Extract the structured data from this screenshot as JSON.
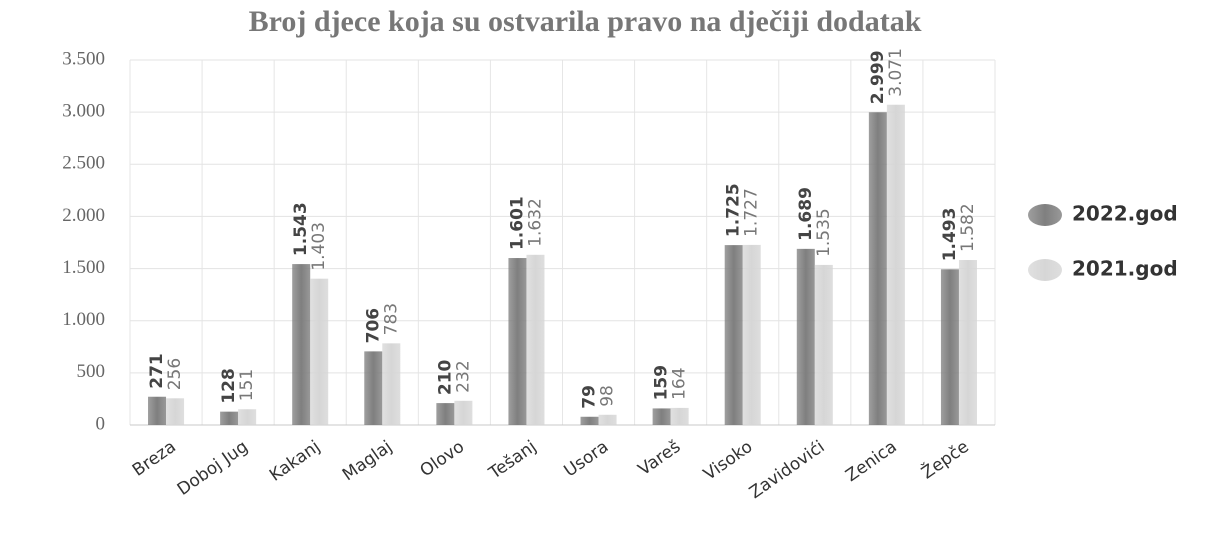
{
  "chart_data": {
    "type": "bar",
    "title": "Broj djece koja su ostvarila pravo na dječiji dodatak",
    "categories": [
      "Breza",
      "Doboj Jug",
      "Kakanj",
      "Maglaj",
      "Olovo",
      "Tešanj",
      "Usora",
      "Vareš",
      "Visoko",
      "Zavidovići",
      "Zenica",
      "Žepče"
    ],
    "series": [
      {
        "name": "2022.god",
        "color": "#7f7f7f",
        "values": [
          271,
          128,
          1543,
          706,
          210,
          1601,
          79,
          159,
          1725,
          1689,
          2999,
          1493
        ],
        "value_labels": [
          "271",
          "128",
          "1.543",
          "706",
          "210",
          "1.601",
          "79",
          "159",
          "1.725",
          "1.689",
          "2.999",
          "1.493"
        ]
      },
      {
        "name": "2021.god",
        "color": "#d6d6d6",
        "values": [
          256,
          151,
          1403,
          783,
          232,
          1632,
          98,
          164,
          1727,
          1535,
          3071,
          1582
        ],
        "value_labels": [
          "256",
          "151",
          "1.403",
          "783",
          "232",
          "1.632",
          "98",
          "164",
          "1.727",
          "1.535",
          "3.071",
          "1.582"
        ]
      }
    ],
    "ylim": [
      0,
      3500
    ],
    "yticks": [
      0,
      500,
      {
        "value": 1000,
        "label": "1.000"
      },
      {
        "value": 1500,
        "label": "1.500"
      },
      {
        "value": 2000,
        "label": "2.000"
      },
      {
        "value": 2500,
        "label": "2.500"
      },
      {
        "value": 3000,
        "label": "3.000"
      },
      {
        "value": 3500,
        "label": "3.500"
      }
    ],
    "grid": true,
    "legend": "right"
  }
}
